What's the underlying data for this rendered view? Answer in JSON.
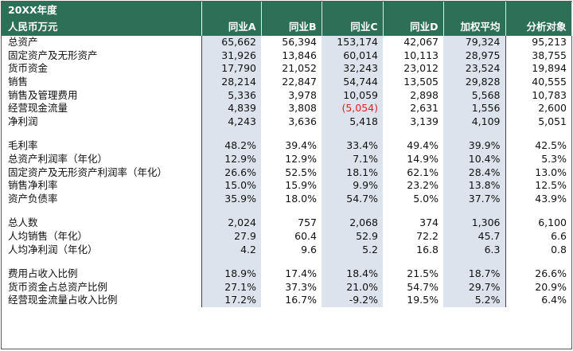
{
  "header": {
    "year_label": "20XX年度",
    "unit_label": "人民币万元",
    "columns": [
      "同业A",
      "同业B",
      "同业C",
      "同业D",
      "加权平均",
      "分析对象"
    ]
  },
  "sections": [
    {
      "rows": [
        {
          "label": "总资产",
          "values": [
            "65,662",
            "56,394",
            "153,174",
            "42,067",
            "79,324",
            "95,213"
          ]
        },
        {
          "label": "固定资产及无形资产",
          "values": [
            "31,926",
            "13,846",
            "60,014",
            "10,113",
            "28,975",
            "38,755"
          ]
        },
        {
          "label": "货币资金",
          "values": [
            "17,790",
            "21,052",
            "32,243",
            "23,012",
            "23,524",
            "19,894"
          ]
        },
        {
          "label": "销售",
          "values": [
            "28,214",
            "22,847",
            "54,744",
            "13,505",
            "29,828",
            "40,555"
          ]
        },
        {
          "label": "销售及管理费用",
          "values": [
            "5,336",
            "3,978",
            "10,059",
            "2,898",
            "5,568",
            "10,783"
          ]
        },
        {
          "label": "经营现金流量",
          "values": [
            "4,839",
            "3,808",
            "(5,054)",
            "2,631",
            "1,556",
            "2,600"
          ],
          "negative_index": 2
        },
        {
          "label": "净利润",
          "values": [
            "4,243",
            "3,636",
            "5,418",
            "3,139",
            "4,109",
            "5,051"
          ]
        }
      ]
    },
    {
      "rows": [
        {
          "label": "毛利率",
          "values": [
            "48.2%",
            "39.4%",
            "33.4%",
            "49.4%",
            "39.9%",
            "42.5%"
          ]
        },
        {
          "label": "总资产利润率（年化）",
          "values": [
            "12.9%",
            "12.9%",
            "7.1%",
            "14.9%",
            "10.4%",
            "5.3%"
          ]
        },
        {
          "label": "固定资产及无形资产利润率（年化）",
          "values": [
            "26.6%",
            "52.5%",
            "18.1%",
            "62.1%",
            "28.4%",
            "13.0%"
          ]
        },
        {
          "label": "销售净利率",
          "values": [
            "15.0%",
            "15.9%",
            "9.9%",
            "23.2%",
            "13.8%",
            "12.5%"
          ]
        },
        {
          "label": "资产负债率",
          "values": [
            "35.9%",
            "18.0%",
            "54.7%",
            "5.0%",
            "37.7%",
            "43.9%"
          ]
        }
      ]
    },
    {
      "rows": [
        {
          "label": "总人数",
          "values": [
            "2,024",
            "757",
            "2,068",
            "374",
            "1,306",
            "6,100"
          ]
        },
        {
          "label": "人均销售（年化）",
          "values": [
            "27.9",
            "60.4",
            "52.9",
            "72.2",
            "45.7",
            "6.6"
          ]
        },
        {
          "label": "人均净利润（年化）",
          "values": [
            "4.2",
            "9.6",
            "5.2",
            "16.8",
            "6.3",
            "0.8"
          ]
        }
      ]
    },
    {
      "rows": [
        {
          "label": "费用占收入比例",
          "values": [
            "18.9%",
            "17.4%",
            "18.4%",
            "21.5%",
            "18.7%",
            "26.6%"
          ]
        },
        {
          "label": "货币资金占总资产比例",
          "values": [
            "27.1%",
            "37.3%",
            "21.0%",
            "54.7%",
            "29.7%",
            "20.9%"
          ]
        },
        {
          "label": "经营现金流量占收入比例",
          "values": [
            "17.2%",
            "16.7%",
            "-9.2%",
            "19.5%",
            "5.2%",
            "6.4%"
          ]
        }
      ]
    }
  ],
  "colors": {
    "header_bg": "#2e6f58",
    "shaded_column_bg": "#dce3ec",
    "negative_text": "#e02020"
  }
}
